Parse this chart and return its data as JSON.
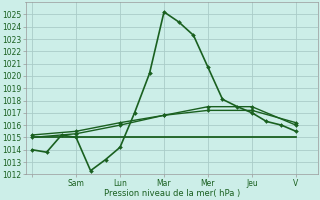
{
  "bg_color": "#cceee8",
  "grid_color": "#aaccc8",
  "line_color": "#1a6020",
  "ylabel": "Pression niveau de la mer( hPa )",
  "ylim": [
    1012,
    1026
  ],
  "yticks": [
    1012,
    1013,
    1014,
    1015,
    1016,
    1017,
    1018,
    1019,
    1020,
    1021,
    1022,
    1023,
    1024,
    1025
  ],
  "x_labels": [
    "",
    "Sam",
    "Lun",
    "Mar",
    "Mer",
    "Jeu",
    "V"
  ],
  "x_tick_positions": [
    0,
    1,
    2,
    3,
    4,
    5,
    6
  ],
  "series": [
    {
      "x": [
        0,
        0.33,
        0.67,
        1.0,
        1.33,
        1.67,
        2.0,
        2.33,
        2.67,
        3.0,
        3.33,
        3.67,
        4.0,
        4.33,
        4.67,
        5.0,
        5.33,
        5.67,
        6.0
      ],
      "y": [
        1014.0,
        1013.8,
        1015.2,
        1015.0,
        1012.3,
        1013.2,
        1014.2,
        1017.0,
        1020.2,
        1025.2,
        1024.4,
        1023.3,
        1020.7,
        1018.1,
        1017.5,
        1017.0,
        1016.3,
        1016.0,
        1015.5
      ],
      "color": "#1a6020",
      "lw": 1.2,
      "marker": "D",
      "ms": 2.0
    },
    {
      "x": [
        0,
        1,
        2,
        3,
        4,
        5,
        6
      ],
      "y": [
        1015.0,
        1015.3,
        1016.0,
        1016.8,
        1017.5,
        1017.5,
        1016.0
      ],
      "color": "#1a6020",
      "lw": 1.0,
      "marker": "D",
      "ms": 2.0
    },
    {
      "x": [
        0,
        1,
        2,
        3,
        4,
        5,
        6
      ],
      "y": [
        1015.2,
        1015.5,
        1016.2,
        1016.8,
        1017.2,
        1017.2,
        1016.2
      ],
      "color": "#1a6020",
      "lw": 1.0,
      "marker": "D",
      "ms": 2.0
    },
    {
      "x": [
        0,
        3,
        6
      ],
      "y": [
        1015.0,
        1015.0,
        1015.0
      ],
      "color": "#1a6020",
      "lw": 1.3,
      "marker": null,
      "ms": 0
    }
  ]
}
